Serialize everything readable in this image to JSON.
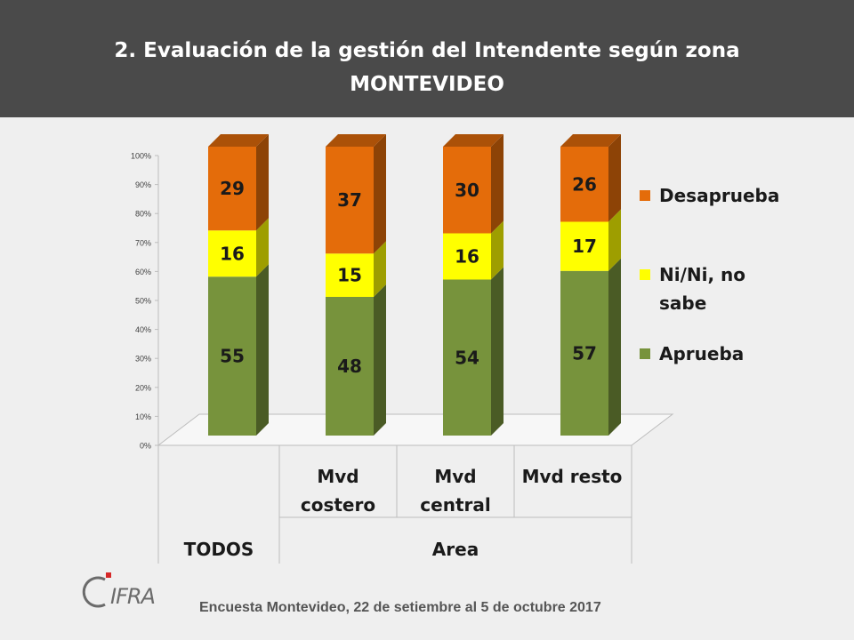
{
  "header": {
    "title_line1": "2. Evaluación de la gestión del Intendente según zona",
    "title_line2": "MONTEVIDEO"
  },
  "chart_data": {
    "type": "bar",
    "stacked": true,
    "categories": [
      "TODOS",
      "Mvd costero",
      "Mvd central",
      "Mvd resto"
    ],
    "group_labels": [
      "TODOS",
      "Area"
    ],
    "series": [
      {
        "name": "Aprueba",
        "values": [
          55,
          48,
          54,
          57
        ],
        "color": "#77933c"
      },
      {
        "name": "Ni/Ni, no sabe",
        "values": [
          16,
          15,
          16,
          17
        ],
        "color": "#ffff00"
      },
      {
        "name": "Desaprueba",
        "values": [
          29,
          37,
          30,
          26
        ],
        "color": "#e46c0a"
      }
    ],
    "yticks": [
      "0%",
      "10%",
      "20%",
      "30%",
      "40%",
      "50%",
      "60%",
      "70%",
      "80%",
      "90%",
      "100%"
    ],
    "ylim": [
      0,
      100
    ],
    "legend_position": "right"
  },
  "logo": {
    "text": "CIFRA"
  },
  "footer": {
    "text": "Encuesta Montevideo,  22 de setiembre al 5 de octubre 2017"
  }
}
